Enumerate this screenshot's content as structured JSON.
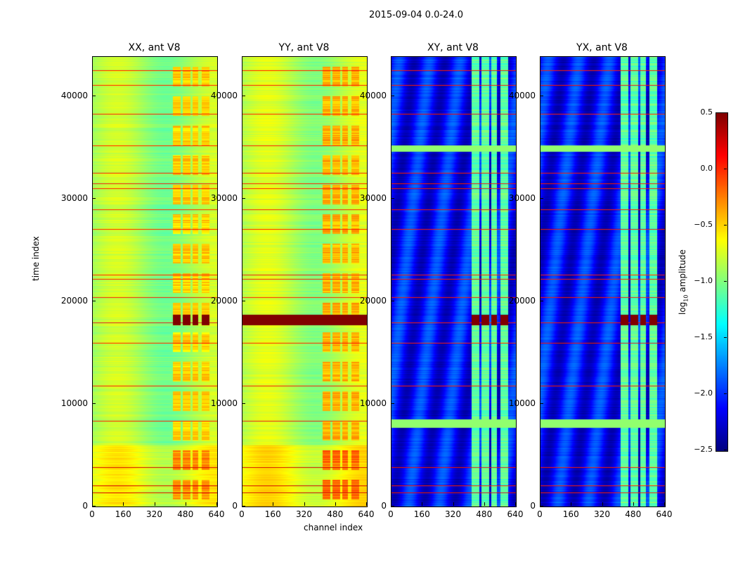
{
  "chart_data": {
    "type": "heatmap",
    "suptitle": "2015-09-04 0.0-24.0",
    "xlabel": "channel index",
    "ylabel": "time index",
    "xlim": [
      0,
      640
    ],
    "ylim": [
      0,
      43800
    ],
    "xticks": [
      "0",
      "160",
      "320",
      "480",
      "640"
    ],
    "yticks": [
      "0",
      "10000",
      "20000",
      "30000",
      "40000"
    ],
    "ytick_values": [
      0,
      10000,
      20000,
      30000,
      40000
    ],
    "panels": [
      {
        "title": "XX, ant V8",
        "base": -0.9,
        "band_level": -0.5,
        "type": "parallel"
      },
      {
        "title": "YY, ant V8",
        "base": -0.85,
        "band_level": -0.4,
        "type": "parallel"
      },
      {
        "title": "XY, ant V8",
        "base": -2.1,
        "band_level": -1.1,
        "type": "cross"
      },
      {
        "title": "YX, ant V8",
        "base": -2.1,
        "band_level": -1.1,
        "type": "cross"
      }
    ],
    "band_channels": [
      [
        410,
        450
      ],
      [
        460,
        500
      ],
      [
        510,
        540
      ],
      [
        560,
        600
      ]
    ],
    "rfi_times": [
      42530,
      41030,
      38290,
      35210,
      32480,
      31450,
      31000,
      28920,
      27010,
      22560,
      22150,
      20380,
      17910,
      15930,
      11760,
      8340,
      3800,
      2050,
      1400
    ],
    "burst_time": 18200,
    "colorbar": {
      "label": "log10 amplitude",
      "label_main": "log",
      "label_sub": "10",
      "label_rest": " amplitude",
      "ticks": [
        "0.5",
        "0.0",
        "−0.5",
        "−1.0",
        "−1.5",
        "−2.0",
        "−2.5"
      ],
      "tick_values": [
        0.5,
        0,
        -0.5,
        -1,
        -1.5,
        -2,
        -2.5
      ],
      "range": [
        -2.5,
        0.5
      ],
      "colormap": "jet"
    }
  }
}
